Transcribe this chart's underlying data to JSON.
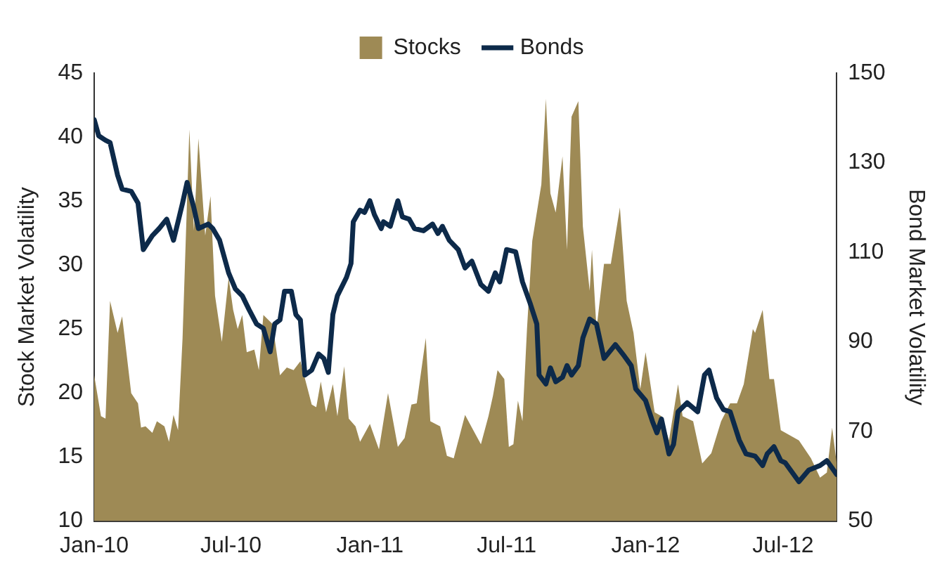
{
  "chart_data": {
    "type": "line",
    "ylabel": "Stock Market Volatility",
    "y2label": "Bond Market Volatility",
    "legend": "top",
    "grid": false,
    "xlim": [
      "2010-01-01",
      "2012-09-10"
    ],
    "xticks": [
      {
        "value": "2010-01-01",
        "label": "Jan-10"
      },
      {
        "value": "2010-07-01",
        "label": "Jul-10"
      },
      {
        "value": "2011-01-01",
        "label": "Jan-11"
      },
      {
        "value": "2011-07-01",
        "label": "Jul-11"
      },
      {
        "value": "2012-01-01",
        "label": "Jan-12"
      },
      {
        "value": "2012-07-01",
        "label": "Jul-12"
      }
    ],
    "ylim": [
      10,
      45
    ],
    "yticks": [
      10,
      15,
      20,
      25,
      30,
      35,
      40,
      45
    ],
    "y2lim": [
      50,
      150
    ],
    "y2ticks": [
      50,
      70,
      90,
      110,
      130,
      150
    ],
    "series": [
      {
        "name": "Stocks",
        "type": "area",
        "axis": "y",
        "color": "#9e8a55",
        "x": [
          "2010-01-01",
          "2010-01-10",
          "2010-01-16",
          "2010-01-22",
          "2010-02-01",
          "2010-02-07",
          "2010-02-19",
          "2010-02-28",
          "2010-03-04",
          "2010-03-10",
          "2010-03-19",
          "2010-03-25",
          "2010-04-04",
          "2010-04-10",
          "2010-04-16",
          "2010-04-22",
          "2010-04-28",
          "2010-05-07",
          "2010-05-13",
          "2010-05-19",
          "2010-05-28",
          "2010-06-04",
          "2010-06-10",
          "2010-06-19",
          "2010-06-28",
          "2010-07-04",
          "2010-07-10",
          "2010-07-16",
          "2010-07-22",
          "2010-08-01",
          "2010-08-07",
          "2010-08-13",
          "2010-08-25",
          "2010-09-04",
          "2010-09-13",
          "2010-09-22",
          "2010-10-01",
          "2010-10-16",
          "2010-10-22",
          "2010-10-28",
          "2010-11-04",
          "2010-11-13",
          "2010-11-19",
          "2010-11-28",
          "2010-12-04",
          "2010-12-13",
          "2010-12-19",
          "2011-01-01",
          "2011-01-13",
          "2011-01-25",
          "2011-02-07",
          "2011-02-16",
          "2011-02-25",
          "2011-03-04",
          "2011-03-16",
          "2011-03-22",
          "2011-04-04",
          "2011-04-13",
          "2011-04-22",
          "2011-05-07",
          "2011-05-16",
          "2011-05-28",
          "2011-06-07",
          "2011-06-13",
          "2011-06-19",
          "2011-06-28",
          "2011-07-04",
          "2011-07-10",
          "2011-07-16",
          "2011-07-22",
          "2011-07-28",
          "2011-08-04",
          "2011-08-16",
          "2011-08-22",
          "2011-08-28",
          "2011-09-04",
          "2011-09-13",
          "2011-09-19",
          "2011-09-25",
          "2011-10-04",
          "2011-10-10",
          "2011-10-19",
          "2011-10-22",
          "2011-10-28",
          "2011-11-07",
          "2011-11-16",
          "2011-11-28",
          "2011-12-07",
          "2011-12-16",
          "2011-12-25",
          "2012-01-01",
          "2012-01-13",
          "2012-01-22",
          "2012-02-01",
          "2012-02-13",
          "2012-02-19",
          "2012-03-04",
          "2012-03-16",
          "2012-03-28",
          "2012-04-10",
          "2012-04-22",
          "2012-05-01",
          "2012-05-10",
          "2012-05-22",
          "2012-05-25",
          "2012-06-04",
          "2012-06-13",
          "2012-06-19",
          "2012-06-28",
          "2012-07-10",
          "2012-07-22",
          "2012-08-07",
          "2012-08-19",
          "2012-08-28",
          "2012-09-04",
          "2012-09-10"
        ],
        "values": [
          21.4,
          18.2,
          18,
          27.2,
          24.7,
          26,
          20,
          19.2,
          17.3,
          17.4,
          16.9,
          17.8,
          17.4,
          16.2,
          18.3,
          17.1,
          24.3,
          40.6,
          32.7,
          39.9,
          32.3,
          35.4,
          27.6,
          24,
          29,
          26.5,
          25,
          26.1,
          23.2,
          23.4,
          21.8,
          26.1,
          25.4,
          21.4,
          22,
          21.8,
          22.5,
          19.1,
          18.9,
          20.9,
          18.5,
          20.7,
          18.2,
          22.1,
          18,
          17.4,
          16.2,
          17.6,
          15.6,
          20,
          15.8,
          16.5,
          19.1,
          19.2,
          24.3,
          17.8,
          17.4,
          15.1,
          14.9,
          18.3,
          17.3,
          16,
          18.2,
          19.8,
          21.8,
          21.1,
          15.8,
          16,
          19.4,
          17.8,
          25,
          31.9,
          36.3,
          43,
          35.6,
          34.1,
          38.5,
          31.2,
          41.6,
          42.8,
          33,
          28,
          31.2,
          25,
          30.1,
          30.1,
          34.5,
          27.2,
          24.7,
          20.3,
          23.2,
          18.5,
          18.2,
          16.3,
          20.7,
          18.2,
          17.8,
          14.5,
          15.3,
          17.8,
          19.2,
          19.2,
          20.7,
          25,
          24.7,
          26.5,
          21.1,
          21.1,
          17.1,
          16.7,
          16.3,
          14.9,
          13.4,
          13.8,
          17.3,
          14.5
        ]
      },
      {
        "name": "Bonds",
        "type": "line",
        "axis": "y2",
        "color": "#0d2a4a",
        "x": [
          "2010-01-01",
          "2010-01-07",
          "2010-01-16",
          "2010-01-22",
          "2010-02-01",
          "2010-02-07",
          "2010-02-19",
          "2010-02-28",
          "2010-03-07",
          "2010-03-19",
          "2010-03-28",
          "2010-04-07",
          "2010-04-16",
          "2010-04-22",
          "2010-04-28",
          "2010-05-04",
          "2010-05-13",
          "2010-05-19",
          "2010-06-01",
          "2010-06-07",
          "2010-06-16",
          "2010-06-28",
          "2010-07-07",
          "2010-07-16",
          "2010-07-25",
          "2010-08-04",
          "2010-08-13",
          "2010-08-22",
          "2010-08-28",
          "2010-09-04",
          "2010-09-10",
          "2010-09-19",
          "2010-09-25",
          "2010-10-01",
          "2010-10-07",
          "2010-10-16",
          "2010-10-25",
          "2010-11-01",
          "2010-11-07",
          "2010-11-13",
          "2010-11-19",
          "2010-12-01",
          "2010-12-07",
          "2010-12-10",
          "2010-12-19",
          "2010-12-25",
          "2011-01-01",
          "2011-01-07",
          "2011-01-16",
          "2011-01-19",
          "2011-01-28",
          "2011-02-07",
          "2011-02-13",
          "2011-02-22",
          "2011-03-01",
          "2011-03-13",
          "2011-03-25",
          "2011-04-01",
          "2011-04-07",
          "2011-04-16",
          "2011-04-28",
          "2011-05-07",
          "2011-05-16",
          "2011-05-28",
          "2011-06-07",
          "2011-06-16",
          "2011-06-22",
          "2011-07-01",
          "2011-07-13",
          "2011-07-22",
          "2011-08-01",
          "2011-08-10",
          "2011-08-13",
          "2011-08-22",
          "2011-08-28",
          "2011-09-04",
          "2011-09-13",
          "2011-09-19",
          "2011-09-25",
          "2011-10-04",
          "2011-10-10",
          "2011-10-19",
          "2011-10-28",
          "2011-11-07",
          "2011-11-22",
          "2011-12-04",
          "2011-12-13",
          "2011-12-19",
          "2012-01-01",
          "2012-01-10",
          "2012-01-16",
          "2012-01-22",
          "2012-02-01",
          "2012-02-07",
          "2012-02-13",
          "2012-02-25",
          "2012-03-10",
          "2012-03-19",
          "2012-03-25",
          "2012-04-04",
          "2012-04-13",
          "2012-04-22",
          "2012-05-04",
          "2012-05-13",
          "2012-05-25",
          "2012-06-04",
          "2012-06-10",
          "2012-06-19",
          "2012-06-28",
          "2012-07-04",
          "2012-07-22",
          "2012-08-04",
          "2012-08-19",
          "2012-08-28",
          "2012-09-10"
        ],
        "values": [
          139.6,
          136,
          135,
          134.5,
          127.2,
          124.1,
          123.6,
          121,
          110.6,
          113.7,
          115.3,
          117.4,
          112.7,
          116.8,
          121,
          125.6,
          119.9,
          115.3,
          116.3,
          115.3,
          112.7,
          105.4,
          101.8,
          100.3,
          97.2,
          94,
          93,
          87.8,
          94,
          94.9,
          101.3,
          101.3,
          96.1,
          94.9,
          82.6,
          83.7,
          87.3,
          86.3,
          83.2,
          96.1,
          100.3,
          104.4,
          107.5,
          116.8,
          119.4,
          118.9,
          121.5,
          118.4,
          115.3,
          116.8,
          115.8,
          121.5,
          117.9,
          117.4,
          115.3,
          114.8,
          116.3,
          114.2,
          115.8,
          112.7,
          110.6,
          106.5,
          108,
          102.8,
          101.3,
          105.4,
          103.4,
          110.6,
          110.1,
          103.4,
          98.7,
          94,
          82.6,
          80.6,
          84.2,
          81.1,
          82.1,
          84.7,
          82.6,
          84.7,
          90.9,
          95.1,
          94,
          86.3,
          89.4,
          86.8,
          84.7,
          79.5,
          76.9,
          72.3,
          69.7,
          72.8,
          65,
          67.1,
          74.4,
          76.4,
          74.4,
          82.6,
          83.7,
          77.5,
          74.9,
          74.4,
          68.1,
          65,
          64.5,
          62.4,
          65,
          66.6,
          63.5,
          63,
          58.8,
          61.4,
          62.4,
          63.5,
          60.4
        ]
      }
    ]
  }
}
